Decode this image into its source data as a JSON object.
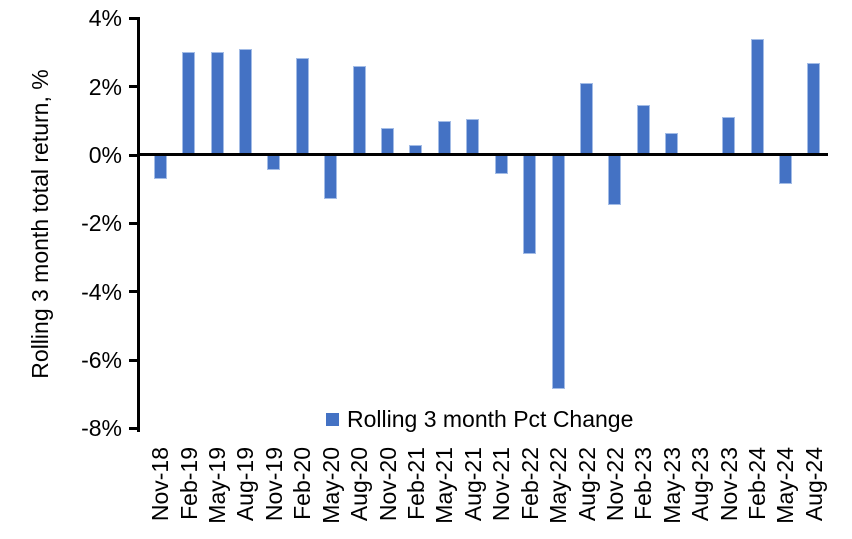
{
  "chart_data": {
    "type": "bar",
    "title": "",
    "ylabel": "Rolling 3 month total return, %",
    "xlabel": "",
    "ylim": [
      -8,
      4
    ],
    "grid": false,
    "legend_position": "inside-bottom-center",
    "y_tick_values": [
      4,
      2,
      0,
      -2,
      -4,
      -6,
      -8
    ],
    "y_tick_labels": [
      "4%",
      "2%",
      "0%",
      "-2%",
      "-4%",
      "-6%",
      "-8%"
    ],
    "categories": [
      "Nov-18",
      "Feb-19",
      "May-19",
      "Aug-19",
      "Nov-19",
      "Feb-20",
      "May-20",
      "Aug-20",
      "Nov-20",
      "Feb-21",
      "May-21",
      "Aug-21",
      "Nov-21",
      "Feb-22",
      "May-22",
      "Aug-22",
      "Nov-22",
      "Feb-23",
      "May-23",
      "Aug-23",
      "Nov-23",
      "Feb-24",
      "May-24",
      "Aug-24"
    ],
    "series": [
      {
        "name": "Rolling 3 month Pct Change",
        "color": "#4472C4",
        "values": [
          -0.7,
          3.0,
          3.0,
          3.1,
          -0.45,
          2.85,
          -1.3,
          2.6,
          0.8,
          0.3,
          1.0,
          1.05,
          -0.55,
          -2.9,
          -6.85,
          2.1,
          -1.45,
          1.45,
          0.65,
          0.0,
          1.1,
          3.4,
          -0.85,
          2.7
        ]
      }
    ]
  },
  "colors": {
    "bar_fill": "#4472C4",
    "bar_edge": "#A3BCE6",
    "axis": "#000000",
    "text": "#000000",
    "background": "#FFFFFF"
  }
}
